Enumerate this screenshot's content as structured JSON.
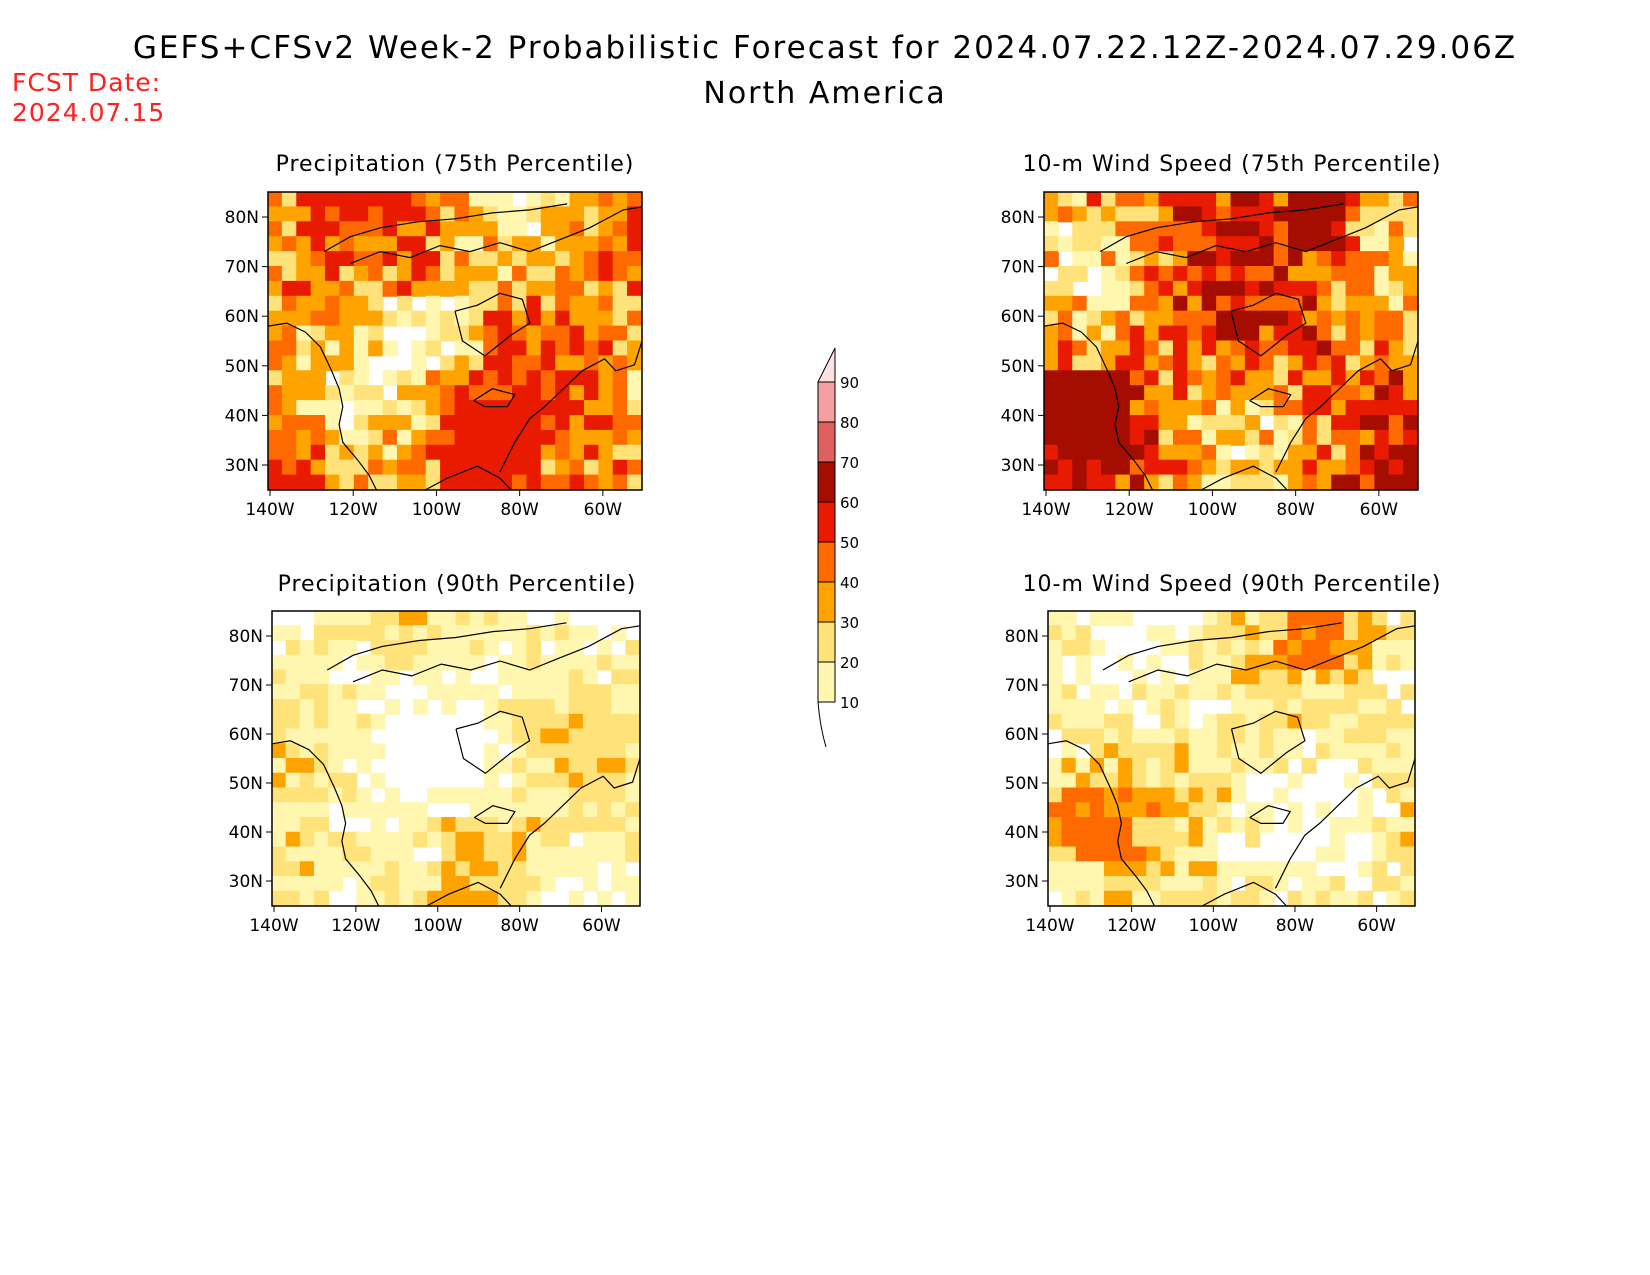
{
  "title": "GEFS+CFSv2 Week-2 Probabilistic Forecast for 2024.07.22.12Z-2024.07.29.06Z",
  "subtitle": "North America",
  "fcst_date_label": "FCST Date:",
  "fcst_date": "2024.07.15",
  "colorbar": {
    "levels": [
      "10",
      "20",
      "30",
      "40",
      "50",
      "60",
      "70",
      "80",
      "90"
    ],
    "colors": [
      "#fff7b0",
      "#ffe27a",
      "#ffa300",
      "#ff6a00",
      "#e81a00",
      "#a50d00",
      "#e06060",
      "#f5a0a0",
      "#fde0e0"
    ]
  },
  "axis": {
    "lat_labels": [
      "80N",
      "70N",
      "60N",
      "50N",
      "40N",
      "30N"
    ],
    "lon_labels": [
      "140W",
      "120W",
      "100W",
      "80W",
      "60W"
    ]
  },
  "panels": [
    {
      "id": "precip-75",
      "title": "Precipitation (75th Percentile)",
      "max_category": "50"
    },
    {
      "id": "wind-75",
      "title": "10-m Wind Speed (75th Percentile)",
      "max_category": "60"
    },
    {
      "id": "precip-90",
      "title": "Precipitation (90th Percentile)",
      "max_category": "30"
    },
    {
      "id": "wind-90",
      "title": "10-m Wind Speed (90th Percentile)",
      "max_category": "40"
    }
  ]
}
